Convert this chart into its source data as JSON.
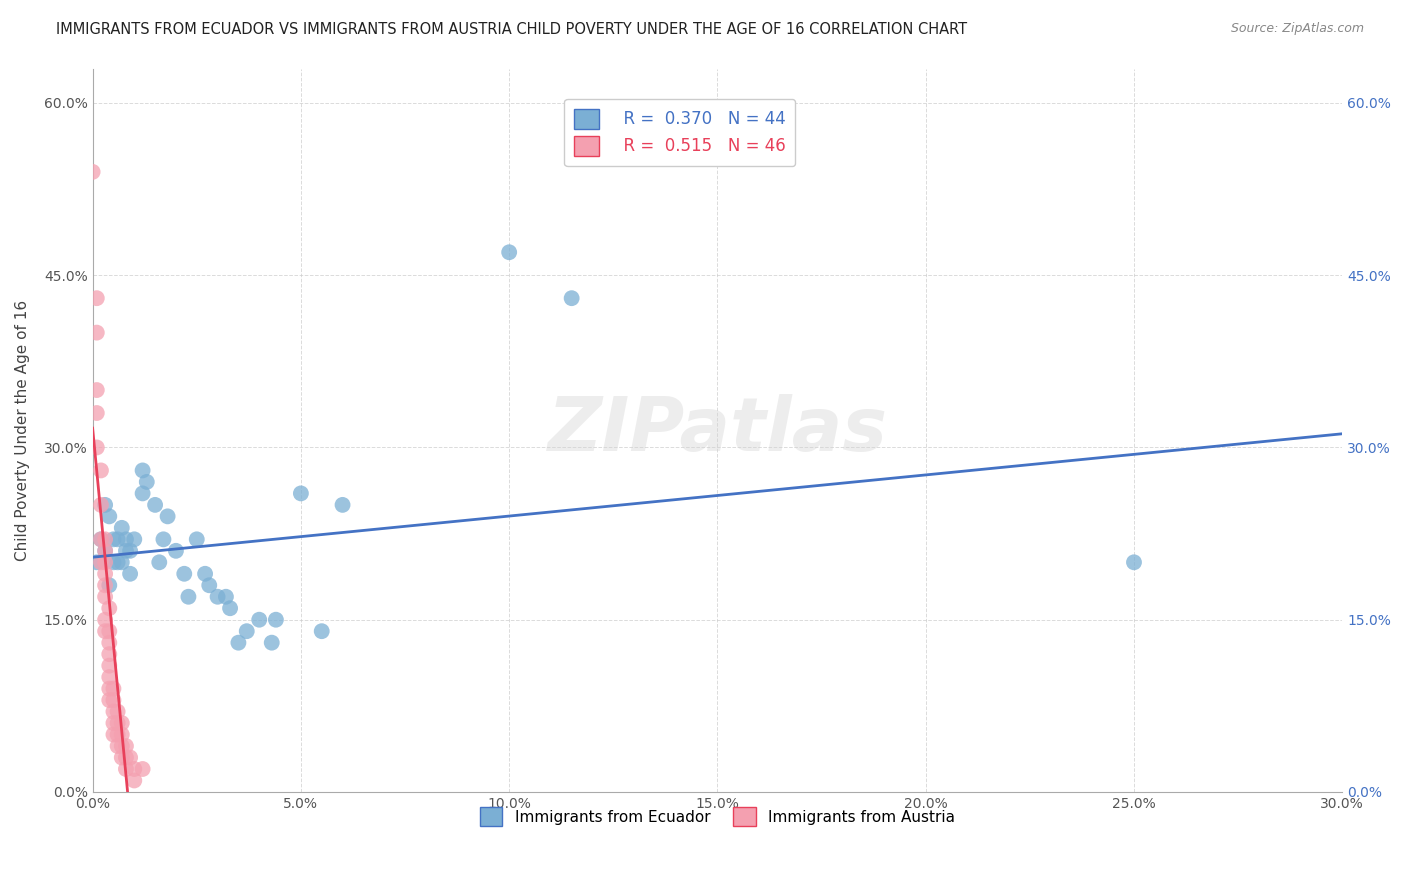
{
  "title": "IMMIGRANTS FROM ECUADOR VS IMMIGRANTS FROM AUSTRIA CHILD POVERTY UNDER THE AGE OF 16 CORRELATION CHART",
  "source": "Source: ZipAtlas.com",
  "ylabel_label": "Child Poverty Under the Age of 16",
  "xmin": 0.0,
  "xmax": 0.3,
  "ymin": 0.0,
  "ymax": 0.63,
  "ecuador_color": "#7bafd4",
  "austria_color": "#f4a0b0",
  "ecuador_line_color": "#4472c4",
  "austria_line_color": "#e8405a",
  "ecuador_R": 0.37,
  "ecuador_N": 44,
  "austria_R": 0.515,
  "austria_N": 46,
  "watermark": "ZIPatlas",
  "ecuador_scatter": [
    [
      0.001,
      0.2
    ],
    [
      0.002,
      0.22
    ],
    [
      0.003,
      0.25
    ],
    [
      0.003,
      0.21
    ],
    [
      0.004,
      0.24
    ],
    [
      0.004,
      0.18
    ],
    [
      0.005,
      0.22
    ],
    [
      0.005,
      0.2
    ],
    [
      0.006,
      0.2
    ],
    [
      0.006,
      0.22
    ],
    [
      0.007,
      0.2
    ],
    [
      0.007,
      0.23
    ],
    [
      0.008,
      0.21
    ],
    [
      0.008,
      0.22
    ],
    [
      0.009,
      0.19
    ],
    [
      0.009,
      0.21
    ],
    [
      0.01,
      0.22
    ],
    [
      0.012,
      0.26
    ],
    [
      0.012,
      0.28
    ],
    [
      0.013,
      0.27
    ],
    [
      0.015,
      0.25
    ],
    [
      0.016,
      0.2
    ],
    [
      0.017,
      0.22
    ],
    [
      0.018,
      0.24
    ],
    [
      0.02,
      0.21
    ],
    [
      0.022,
      0.19
    ],
    [
      0.023,
      0.17
    ],
    [
      0.025,
      0.22
    ],
    [
      0.027,
      0.19
    ],
    [
      0.028,
      0.18
    ],
    [
      0.03,
      0.17
    ],
    [
      0.032,
      0.17
    ],
    [
      0.033,
      0.16
    ],
    [
      0.035,
      0.13
    ],
    [
      0.037,
      0.14
    ],
    [
      0.04,
      0.15
    ],
    [
      0.043,
      0.13
    ],
    [
      0.044,
      0.15
    ],
    [
      0.05,
      0.26
    ],
    [
      0.055,
      0.14
    ],
    [
      0.06,
      0.25
    ],
    [
      0.1,
      0.47
    ],
    [
      0.115,
      0.43
    ],
    [
      0.25,
      0.2
    ]
  ],
  "austria_scatter": [
    [
      0.0,
      0.54
    ],
    [
      0.001,
      0.43
    ],
    [
      0.001,
      0.4
    ],
    [
      0.001,
      0.35
    ],
    [
      0.001,
      0.33
    ],
    [
      0.001,
      0.3
    ],
    [
      0.002,
      0.28
    ],
    [
      0.002,
      0.25
    ],
    [
      0.002,
      0.22
    ],
    [
      0.002,
      0.2
    ],
    [
      0.003,
      0.22
    ],
    [
      0.003,
      0.21
    ],
    [
      0.003,
      0.2
    ],
    [
      0.003,
      0.19
    ],
    [
      0.003,
      0.18
    ],
    [
      0.003,
      0.17
    ],
    [
      0.003,
      0.15
    ],
    [
      0.003,
      0.14
    ],
    [
      0.004,
      0.16
    ],
    [
      0.004,
      0.14
    ],
    [
      0.004,
      0.13
    ],
    [
      0.004,
      0.12
    ],
    [
      0.004,
      0.11
    ],
    [
      0.004,
      0.1
    ],
    [
      0.004,
      0.09
    ],
    [
      0.004,
      0.08
    ],
    [
      0.005,
      0.09
    ],
    [
      0.005,
      0.08
    ],
    [
      0.005,
      0.07
    ],
    [
      0.005,
      0.06
    ],
    [
      0.005,
      0.05
    ],
    [
      0.006,
      0.07
    ],
    [
      0.006,
      0.06
    ],
    [
      0.006,
      0.05
    ],
    [
      0.006,
      0.04
    ],
    [
      0.007,
      0.06
    ],
    [
      0.007,
      0.05
    ],
    [
      0.007,
      0.04
    ],
    [
      0.007,
      0.03
    ],
    [
      0.008,
      0.04
    ],
    [
      0.008,
      0.03
    ],
    [
      0.008,
      0.02
    ],
    [
      0.009,
      0.03
    ],
    [
      0.01,
      0.02
    ],
    [
      0.01,
      0.01
    ],
    [
      0.012,
      0.02
    ]
  ]
}
